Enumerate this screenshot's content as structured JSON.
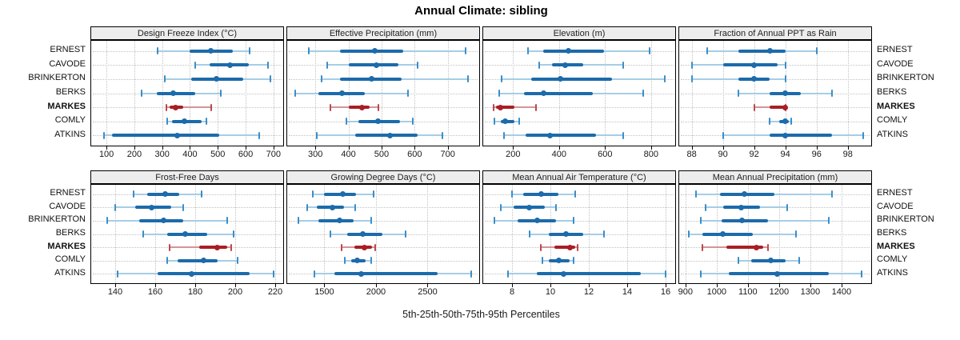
{
  "chart_data": {
    "type": "trellis-interval-dotplot",
    "title": "Annual Climate: sibling",
    "caption": "5th-25th-50th-75th-95th Percentiles",
    "percentiles": [
      5,
      25,
      50,
      75,
      95
    ],
    "sites": [
      "ERNEST",
      "CAVODE",
      "BRINKERTON",
      "BERKS",
      "MARKES",
      "COMLY",
      "ATKINS"
    ],
    "highlight_site": "MARKES",
    "legend_position": "none",
    "grid": "dotted",
    "panels": [
      {
        "title": "Design Freeze Index (°C)",
        "row": 0,
        "col": 0,
        "xlim": [
          45,
          735
        ],
        "ticks": [
          100,
          200,
          300,
          400,
          500,
          600,
          700
        ],
        "series": {
          "ERNEST": [
            285,
            400,
            475,
            555,
            615
          ],
          "CAVODE": [
            420,
            470,
            545,
            610,
            680
          ],
          "BRINKERTON": [
            310,
            405,
            495,
            590,
            690
          ],
          "BERKS": [
            225,
            280,
            340,
            420,
            510
          ],
          "MARKES": [
            315,
            327,
            348,
            377,
            475
          ],
          "COMLY": [
            318,
            335,
            380,
            442,
            460
          ],
          "ATKINS": [
            90,
            120,
            355,
            505,
            650
          ]
        }
      },
      {
        "title": "Effective Precipitation (mm)",
        "row": 0,
        "col": 1,
        "xlim": [
          215,
          795
        ],
        "ticks": [
          300,
          400,
          500,
          600,
          700
        ],
        "series": {
          "ERNEST": [
            280,
            375,
            480,
            565,
            755
          ],
          "CAVODE": [
            335,
            400,
            485,
            550,
            610
          ],
          "BRINKERTON": [
            320,
            375,
            470,
            560,
            760
          ],
          "BERKS": [
            240,
            310,
            380,
            450,
            580
          ],
          "MARKES": [
            345,
            400,
            440,
            465,
            490
          ],
          "COMLY": [
            395,
            430,
            490,
            555,
            595
          ],
          "ATKINS": [
            305,
            420,
            525,
            610,
            685
          ]
        }
      },
      {
        "title": "Elevation (m)",
        "row": 0,
        "col": 2,
        "xlim": [
          70,
          905
        ],
        "ticks": [
          200,
          400,
          600,
          800
        ],
        "series": {
          "ERNEST": [
            265,
            330,
            440,
            595,
            795
          ],
          "CAVODE": [
            315,
            370,
            425,
            505,
            680
          ],
          "BRINKERTON": [
            150,
            280,
            405,
            630,
            860
          ],
          "BERKS": [
            138,
            248,
            331,
            548,
            766
          ],
          "MARKES": [
            114,
            125,
            145,
            205,
            300
          ],
          "COMLY": [
            118,
            145,
            167,
            205,
            228
          ],
          "ATKINS": [
            159,
            255,
            360,
            560,
            680
          ]
        }
      },
      {
        "title": "Fraction of Annual PPT as Rain",
        "row": 0,
        "col": 3,
        "xlim": [
          87.2,
          99.5
        ],
        "ticks": [
          88,
          90,
          92,
          94,
          96,
          98
        ],
        "series": {
          "ERNEST": [
            89,
            91,
            93,
            94,
            96
          ],
          "CAVODE": [
            88,
            90,
            92,
            93.5,
            94
          ],
          "BRINKERTON": [
            88,
            91,
            92,
            93,
            94
          ],
          "BERKS": [
            91,
            93,
            94,
            95,
            97
          ],
          "MARKES": [
            92,
            93,
            94,
            94,
            94
          ],
          "COMLY": [
            93,
            93.6,
            94,
            94.2,
            94.4
          ],
          "ATKINS": [
            90,
            93,
            94,
            97,
            99
          ]
        }
      },
      {
        "title": "Frost-Free Days",
        "row": 1,
        "col": 0,
        "xlim": [
          128,
          224
        ],
        "ticks": [
          140,
          160,
          180,
          200,
          220
        ],
        "series": {
          "ERNEST": [
            149,
            156,
            165,
            172,
            183
          ],
          "CAVODE": [
            140,
            150,
            158,
            168,
            174
          ],
          "BRINKERTON": [
            136,
            152,
            164,
            174,
            196
          ],
          "BERKS": [
            154,
            166,
            175,
            186,
            199
          ],
          "MARKES": [
            167,
            182,
            191,
            196,
            198
          ],
          "COMLY": [
            166,
            171,
            184,
            191,
            201
          ],
          "ATKINS": [
            141,
            161,
            178,
            207,
            219
          ]
        }
      },
      {
        "title": "Growing Degree Days (°C)",
        "row": 1,
        "col": 1,
        "xlim": [
          1140,
          3000
        ],
        "ticks": [
          1500,
          2000,
          2500
        ],
        "series": {
          "ERNEST": [
            1390,
            1500,
            1680,
            1810,
            1980
          ],
          "CAVODE": [
            1330,
            1430,
            1580,
            1690,
            1800
          ],
          "BRINKERTON": [
            1250,
            1440,
            1650,
            1780,
            1950
          ],
          "BERKS": [
            1560,
            1720,
            1870,
            2060,
            2290
          ],
          "MARKES": [
            1670,
            1790,
            1890,
            1960,
            1995
          ],
          "COMLY": [
            1700,
            1760,
            1820,
            1900,
            1950
          ],
          "ATKINS": [
            1400,
            1600,
            1860,
            2600,
            2920
          ]
        }
      },
      {
        "title": "Mean Annual Air Temperature (°C)",
        "row": 1,
        "col": 2,
        "xlim": [
          6.5,
          16.5
        ],
        "ticks": [
          8,
          10,
          12,
          14,
          16
        ],
        "series": {
          "ERNEST": [
            8.0,
            8.6,
            9.5,
            10.4,
            11.3
          ],
          "CAVODE": [
            7.4,
            8.1,
            8.9,
            9.7,
            10.3
          ],
          "BRINKERTON": [
            7.1,
            8.3,
            9.3,
            10.3,
            11.2
          ],
          "BERKS": [
            8.9,
            9.9,
            10.8,
            11.7,
            12.8
          ],
          "MARKES": [
            9.5,
            10.2,
            11.0,
            11.3,
            11.4
          ],
          "COMLY": [
            9.6,
            9.9,
            10.45,
            11.0,
            11.2
          ],
          "ATKINS": [
            7.8,
            9.3,
            10.7,
            14.7,
            16.0
          ]
        }
      },
      {
        "title": "Mean Annual Precipitation (mm)",
        "row": 1,
        "col": 3,
        "xlim": [
          880,
          1495
        ],
        "ticks": [
          900,
          1000,
          1100,
          1200,
          1300,
          1400
        ],
        "series": {
          "ERNEST": [
            935,
            1010,
            1090,
            1185,
            1370
          ],
          "CAVODE": [
            965,
            1020,
            1078,
            1140,
            1225
          ],
          "BRINKERTON": [
            950,
            1015,
            1082,
            1165,
            1360
          ],
          "BERKS": [
            910,
            955,
            1020,
            1115,
            1255
          ],
          "MARKES": [
            955,
            1030,
            1127,
            1150,
            1165
          ],
          "COMLY": [
            1070,
            1110,
            1173,
            1220,
            1265
          ],
          "ATKINS": [
            950,
            1040,
            1193,
            1360,
            1465
          ]
        }
      }
    ],
    "colors": {
      "normal_main": "#1c6bab",
      "normal_whisker": "#a7cde6",
      "normal_cap": "#3b8ec8",
      "highlight_main": "#a91e24",
      "highlight_whisker": "#d49598",
      "highlight_cap": "#b94a4c",
      "grid": "#c3c3c3",
      "strip_bg": "#ededed",
      "border": "#000000"
    }
  }
}
